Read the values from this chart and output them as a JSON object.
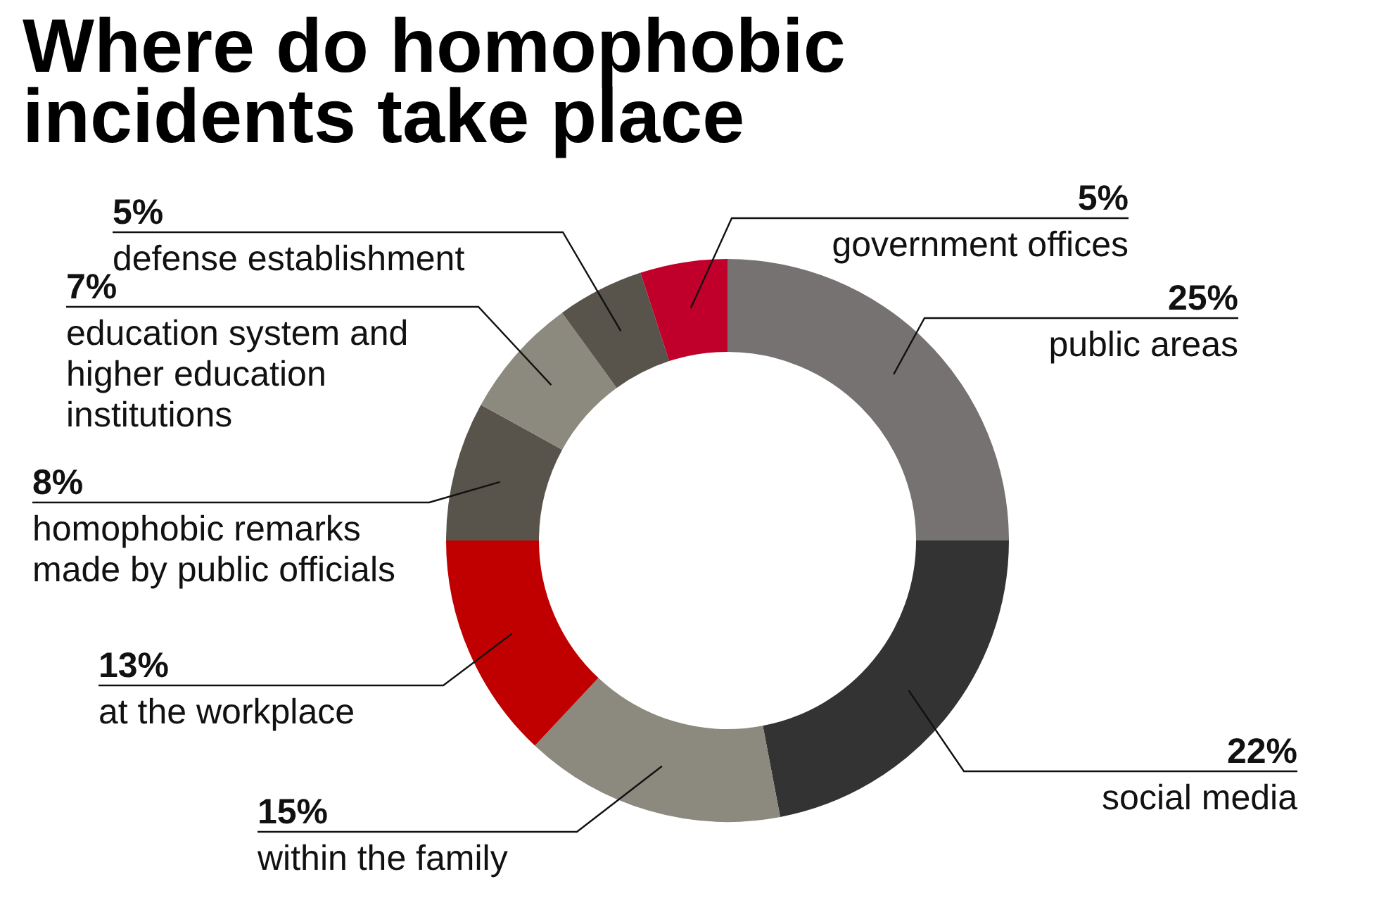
{
  "chart_data": {
    "type": "donut",
    "title": "Where do homophobic incidents take place",
    "categories": [
      "public areas",
      "social media",
      "within the family",
      "at the workplace",
      "homophobic remarks made by public officials",
      "education system and higher education institutions",
      "defense establishment",
      "government offices"
    ],
    "values": [
      25,
      22,
      15,
      13,
      8,
      7,
      5,
      5
    ],
    "colors": [
      "#767272",
      "#333333",
      "#8c8a7e",
      "#c00000",
      "#58534b",
      "#8c8a7e",
      "#58534b",
      "#c0002a"
    ],
    "value_labels": [
      "25%",
      "22%",
      "15%",
      "13%",
      "8%",
      "7%",
      "5%",
      "5%"
    ]
  }
}
